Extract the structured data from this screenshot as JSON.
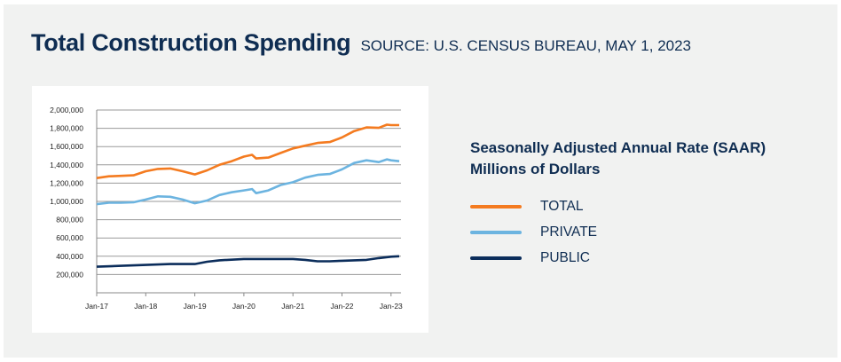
{
  "header": {
    "title": "Total Construction Spending",
    "source": "SOURCE: U.S. CENSUS BUREAU, MAY 1, 2023"
  },
  "legend": {
    "title_line1": "Seasonally Adjusted Annual Rate (SAAR)",
    "title_line2": "Millions of Dollars"
  },
  "chart_data": {
    "type": "line",
    "title": "Total Construction Spending",
    "ylabel": "Seasonally Adjusted Annual Rate (SAAR) Millions of Dollars",
    "ylim": [
      0,
      2000000
    ],
    "grid": true,
    "legend_position": "right",
    "y_ticks": [
      "200,000",
      "400,000",
      "600,000",
      "800,000",
      "1,000,000",
      "1,200,000",
      "1,400,000",
      "1,600,000",
      "1,800,000",
      "2,000,000"
    ],
    "x_ticks": [
      "Jan-17",
      "Jan-18",
      "Jan-19",
      "Jan-20",
      "Jan-21",
      "Jan-22",
      "Jan-23"
    ],
    "series": [
      {
        "name": "TOTAL",
        "color": "#f47b20",
        "x": [
          "2017-01",
          "2017-04",
          "2017-07",
          "2017-10",
          "2018-01",
          "2018-04",
          "2018-07",
          "2018-10",
          "2019-01",
          "2019-04",
          "2019-07",
          "2019-10",
          "2020-01",
          "2020-03",
          "2020-04",
          "2020-07",
          "2020-10",
          "2021-01",
          "2021-04",
          "2021-07",
          "2021-10",
          "2022-01",
          "2022-04",
          "2022-07",
          "2022-10",
          "2022-12",
          "2023-01",
          "2023-03"
        ],
        "values": [
          1255000,
          1275000,
          1280000,
          1285000,
          1330000,
          1355000,
          1360000,
          1330000,
          1295000,
          1340000,
          1400000,
          1440000,
          1490000,
          1510000,
          1470000,
          1480000,
          1530000,
          1580000,
          1610000,
          1640000,
          1650000,
          1700000,
          1770000,
          1810000,
          1805000,
          1840000,
          1835000,
          1835000
        ]
      },
      {
        "name": "PRIVATE",
        "color": "#6cb4e0",
        "x": [
          "2017-01",
          "2017-04",
          "2017-07",
          "2017-10",
          "2018-01",
          "2018-04",
          "2018-07",
          "2018-10",
          "2019-01",
          "2019-04",
          "2019-07",
          "2019-10",
          "2020-01",
          "2020-03",
          "2020-04",
          "2020-07",
          "2020-10",
          "2021-01",
          "2021-04",
          "2021-07",
          "2021-10",
          "2022-01",
          "2022-04",
          "2022-07",
          "2022-10",
          "2022-12",
          "2023-01",
          "2023-03"
        ],
        "values": [
          970000,
          985000,
          985000,
          990000,
          1020000,
          1055000,
          1050000,
          1020000,
          980000,
          1010000,
          1070000,
          1100000,
          1120000,
          1135000,
          1090000,
          1120000,
          1180000,
          1210000,
          1260000,
          1290000,
          1300000,
          1350000,
          1420000,
          1450000,
          1430000,
          1460000,
          1450000,
          1440000
        ]
      },
      {
        "name": "PUBLIC",
        "color": "#0b2d5b",
        "x": [
          "2017-01",
          "2017-07",
          "2018-01",
          "2018-07",
          "2019-01",
          "2019-04",
          "2019-07",
          "2020-01",
          "2020-07",
          "2021-01",
          "2021-04",
          "2021-07",
          "2021-10",
          "2022-01",
          "2022-07",
          "2022-10",
          "2023-01",
          "2023-03"
        ],
        "values": [
          285000,
          295000,
          305000,
          315000,
          315000,
          340000,
          355000,
          370000,
          370000,
          370000,
          360000,
          345000,
          345000,
          350000,
          360000,
          380000,
          395000,
          400000
        ]
      }
    ]
  }
}
